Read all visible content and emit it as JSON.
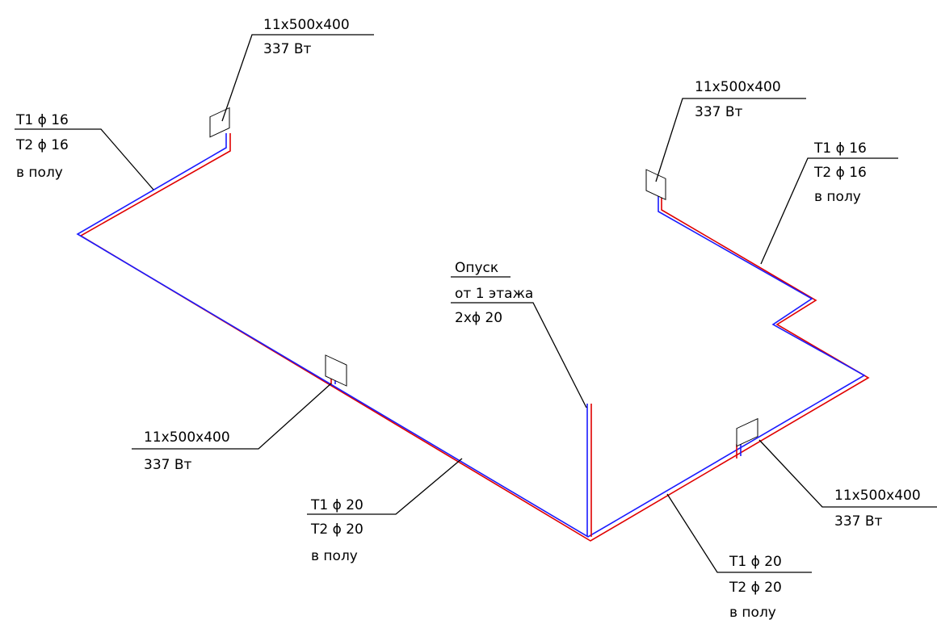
{
  "labels": [
    {
      "lines": [
        "11x500x400",
        "337 Вт"
      ]
    },
    {
      "lines": [
        "Т1 ϕ 16",
        "Т2 ϕ 16",
        "в полу"
      ]
    },
    {
      "lines": [
        "11x500x400",
        "337 Вт"
      ]
    },
    {
      "lines": [
        "Т1 ϕ 16",
        "Т2 ϕ 16",
        "в полу"
      ]
    },
    {
      "lines": [
        "Опуск",
        "от 1 этажа",
        "2хϕ 20"
      ]
    },
    {
      "lines": [
        "11x500x400",
        "337 Вт"
      ]
    },
    {
      "lines": [
        "Т1 ϕ 20",
        "Т2 ϕ 20",
        "в полу"
      ]
    },
    {
      "lines": [
        "11x500x400",
        "337 Вт"
      ]
    },
    {
      "lines": [
        "Т1 ϕ 20",
        "Т2 ϕ 20",
        "в полу"
      ]
    }
  ]
}
